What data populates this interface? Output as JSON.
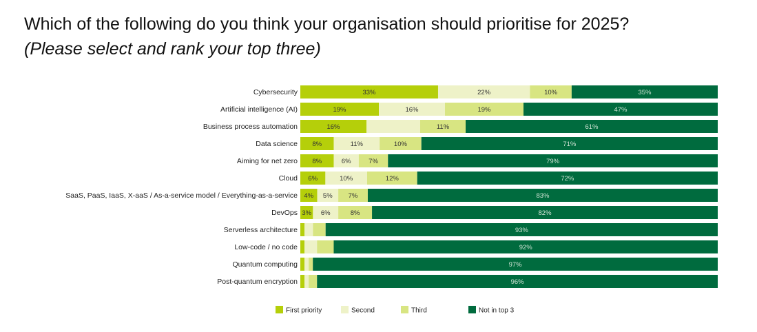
{
  "header": {
    "title": "Which of the following do you think your organisation should prioritise for 2025?",
    "subtitle": "(Please select and rank your top three)"
  },
  "colors": {
    "first": "#b5cf0a",
    "second": "#eef2c8",
    "third": "#d8e582",
    "not": "#006b3e"
  },
  "chart_data": {
    "type": "bar",
    "orientation": "horizontal",
    "stacked": true,
    "categories": [
      "Cybersecurity",
      "Artificial intelligence (AI)",
      "Business process automation",
      "Data science",
      "Aiming for net zero",
      "Cloud",
      "SaaS, PaaS, IaaS, X-aaS / As-a-service model / Everything-as-a-service",
      "DevOps",
      "Serverless architecture",
      "Low-code / no code",
      "Quantum computing",
      "Post-quantum encryption"
    ],
    "series": [
      {
        "name": "First priority",
        "color_key": "first",
        "values": [
          33,
          19,
          16,
          8,
          8,
          6,
          4,
          3,
          1,
          1,
          1,
          1
        ],
        "labels": [
          "33%",
          "19%",
          "16%",
          "8%",
          "8%",
          "6%",
          "4%",
          "3%",
          "",
          "",
          "",
          ""
        ]
      },
      {
        "name": "Second",
        "color_key": "second",
        "values": [
          22,
          16,
          13,
          11,
          6,
          10,
          5,
          6,
          2,
          3,
          1,
          1
        ],
        "labels": [
          "22%",
          "16%",
          "",
          "11%",
          "6%",
          "10%",
          "5%",
          "6%",
          "",
          "",
          "",
          ""
        ]
      },
      {
        "name": "Third",
        "color_key": "third",
        "values": [
          10,
          19,
          11,
          10,
          7,
          12,
          7,
          8,
          3,
          4,
          1,
          2
        ],
        "labels": [
          "10%",
          "19%",
          "11%",
          "10%",
          "7%",
          "12%",
          "7%",
          "8%",
          "",
          "",
          "",
          ""
        ]
      },
      {
        "name": "Not in top 3",
        "color_key": "not",
        "values": [
          35,
          47,
          61,
          71,
          79,
          72,
          83,
          82,
          93,
          92,
          97,
          96
        ],
        "labels": [
          "35%",
          "47%",
          "61%",
          "71%",
          "79%",
          "72%",
          "83%",
          "82%",
          "93%",
          "92%",
          "97%",
          "96%"
        ]
      }
    ],
    "legend": {
      "position": "bottom"
    }
  }
}
